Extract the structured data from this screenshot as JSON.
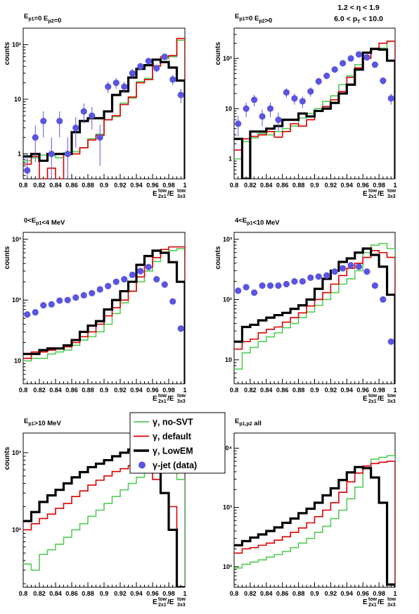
{
  "header": {
    "eta_cut": "1.2 < η < 1.9",
    "pt_cut": "6.0 < p_T < 10.0"
  },
  "legend": {
    "entries": [
      {
        "key": "nosvt",
        "label": "γ, no-SVT",
        "color": "#55cc55",
        "style": "line"
      },
      {
        "key": "def",
        "label": "γ, default",
        "color": "#dd0000",
        "style": "line"
      },
      {
        "key": "lowem",
        "label": "γ, LowEM",
        "color": "#000000",
        "style": "thick-line"
      },
      {
        "key": "data",
        "label": "γ-jet (data)",
        "color": "#5a55e0",
        "style": "marker"
      }
    ]
  },
  "chart_data": [
    {
      "type": "histogram",
      "title": "E_p1=0 E_p2=0",
      "ylabel": "counts",
      "xlabel": "E_2x1^tow/E_3x3^tow",
      "log_y": true,
      "xlim": [
        0.8,
        1.0
      ],
      "ylim": [
        0.35,
        200
      ],
      "x_ticks": [
        "0.8",
        "0.82",
        "0.84",
        "0.86",
        "0.88",
        "0.9",
        "0.92",
        "0.94",
        "0.96",
        "0.98",
        "1"
      ],
      "y_ticks": [
        {
          "value": 1,
          "label": "1"
        },
        {
          "value": 10,
          "label": "10"
        },
        {
          "value": 100,
          "label": "10²"
        }
      ],
      "bin_edges": [
        0.8,
        0.81,
        0.82,
        0.83,
        0.84,
        0.85,
        0.86,
        0.87,
        0.88,
        0.89,
        0.9,
        0.91,
        0.92,
        0.93,
        0.94,
        0.95,
        0.96,
        0.97,
        0.98,
        0.99,
        1.0
      ],
      "series": [
        {
          "key": "nosvt",
          "values": [
            0.75,
            0.85,
            0.95,
            0.95,
            0.85,
            1.05,
            1.1,
            1.3,
            1.9,
            2.3,
            4.2,
            4.8,
            8.5,
            10.5,
            21,
            24,
            40,
            55,
            60,
            120
          ]
        },
        {
          "key": "def",
          "values": [
            0.65,
            0.9,
            0.35,
            0.55,
            0.35,
            1.0,
            1.0,
            1.3,
            1.8,
            2.2,
            4.2,
            5,
            8,
            11,
            20,
            23,
            41,
            60,
            63,
            130
          ]
        },
        {
          "key": "lowem",
          "values": [
            0.9,
            1.0,
            0.75,
            1.0,
            1.0,
            1.0,
            2.5,
            4.0,
            4.5,
            4.5,
            6.0,
            12,
            14,
            25,
            36,
            42,
            53,
            48,
            38,
            22
          ]
        }
      ],
      "points": {
        "key": "data",
        "x": [
          0.805,
          0.815,
          0.825,
          0.835,
          0.845,
          0.855,
          0.865,
          0.875,
          0.885,
          0.895,
          0.905,
          0.915,
          0.925,
          0.935,
          0.945,
          0.955,
          0.965,
          0.975,
          0.985,
          0.995
        ],
        "y": [
          0.5,
          2.0,
          4.0,
          1.0,
          4.0,
          1.0,
          3.0,
          6.0,
          5.0,
          2.0,
          17,
          20,
          17,
          30,
          40,
          50,
          37,
          60,
          23,
          12
        ],
        "err": [
          0.4,
          1.3,
          2.0,
          1.0,
          2.0,
          1.0,
          1.7,
          2.4,
          2.2,
          1.4,
          4,
          4.5,
          4,
          5.5,
          6.3,
          7,
          6,
          7.7,
          4.8,
          3.5
        ]
      }
    },
    {
      "type": "histogram",
      "title": "E_p1=0 E_p2>0",
      "ylabel": "counts",
      "xlabel": "E_2x1^tow/E_3x3^tow",
      "log_y": true,
      "xlim": [
        0.8,
        1.0
      ],
      "ylim": [
        0.4,
        400
      ],
      "x_ticks": [
        "0.8",
        "0.82",
        "0.84",
        "0.86",
        "0.88",
        "0.9",
        "0.92",
        "0.94",
        "0.96",
        "0.98",
        "1"
      ],
      "y_ticks": [
        {
          "value": 1,
          "label": "1"
        },
        {
          "value": 10,
          "label": "10"
        },
        {
          "value": 100,
          "label": "10²"
        }
      ],
      "bin_edges": [
        0.8,
        0.81,
        0.82,
        0.83,
        0.84,
        0.85,
        0.86,
        0.87,
        0.88,
        0.89,
        0.9,
        0.91,
        0.92,
        0.93,
        0.94,
        0.95,
        0.96,
        0.97,
        0.98,
        0.99,
        1.0
      ],
      "series": [
        {
          "key": "nosvt",
          "values": [
            1.0,
            2.2,
            2.6,
            3.2,
            3.0,
            3.5,
            4.0,
            4.5,
            6.5,
            8.0,
            10,
            14,
            18,
            30,
            45,
            75,
            110,
            150,
            160,
            220
          ]
        },
        {
          "key": "def",
          "values": [
            1.5,
            2.5,
            2.8,
            3.0,
            3.5,
            2.7,
            3.5,
            5.0,
            4.5,
            6.0,
            9,
            11,
            15,
            22,
            42,
            65,
            100,
            150,
            200,
            220
          ]
        },
        {
          "key": "lowem",
          "values": [
            2.5,
            0.4,
            3.5,
            3.5,
            4.0,
            4.5,
            6.0,
            6.0,
            8.0,
            7.0,
            9,
            10,
            13,
            20,
            30,
            60,
            130,
            155,
            150,
            90
          ]
        }
      ],
      "points": {
        "key": "data",
        "x": [
          0.805,
          0.815,
          0.825,
          0.835,
          0.845,
          0.855,
          0.865,
          0.875,
          0.885,
          0.895,
          0.905,
          0.915,
          0.925,
          0.935,
          0.945,
          0.955,
          0.965,
          0.975,
          0.985,
          0.995
        ],
        "y": [
          5.0,
          10,
          15,
          7,
          10,
          6,
          21,
          16,
          14,
          22,
          35,
          45,
          60,
          80,
          100,
          120,
          105,
          75,
          36,
          16
        ],
        "err": [
          2.2,
          3.2,
          3.9,
          2.6,
          3.2,
          2.4,
          4.6,
          4,
          3.7,
          4.7,
          5.9,
          6.7,
          7.7,
          9,
          10,
          11,
          10,
          8.7,
          6,
          4
        ]
      }
    },
    {
      "type": "histogram",
      "title": "0<E_p1<4 MeV",
      "ylabel": "counts",
      "xlabel": "E_2x1^tow/E_3x3^tow",
      "log_y": true,
      "xlim": [
        0.8,
        1.0
      ],
      "ylim": [
        4.2,
        1300
      ],
      "x_ticks": [
        "0.8",
        "0.82",
        "0.84",
        "0.86",
        "0.88",
        "0.9",
        "0.92",
        "0.94",
        "0.96",
        "0.98",
        "1"
      ],
      "y_ticks": [
        {
          "value": 10,
          "label": "10"
        },
        {
          "value": 100,
          "label": "10²"
        },
        {
          "value": 1000,
          "label": "10³"
        }
      ],
      "bin_edges": [
        0.8,
        0.81,
        0.82,
        0.83,
        0.84,
        0.85,
        0.86,
        0.87,
        0.88,
        0.89,
        0.9,
        0.91,
        0.92,
        0.93,
        0.94,
        0.95,
        0.96,
        0.97,
        0.98,
        0.99,
        1.0
      ],
      "series": [
        {
          "key": "nosvt",
          "values": [
            10,
            11,
            11,
            13,
            14,
            15,
            18,
            22,
            25,
            30,
            40,
            60,
            90,
            140,
            200,
            300,
            430,
            600,
            650,
            700
          ]
        },
        {
          "key": "def",
          "values": [
            11,
            14,
            14,
            15,
            16,
            17,
            20,
            25,
            30,
            40,
            55,
            75,
            100,
            140,
            240,
            350,
            500,
            680,
            750,
            750
          ]
        },
        {
          "key": "lowem",
          "values": [
            13,
            13,
            15,
            16,
            16,
            18,
            22,
            30,
            38,
            45,
            70,
            100,
            140,
            200,
            380,
            530,
            650,
            600,
            420,
            200
          ]
        }
      ],
      "points": {
        "key": "data",
        "x": [
          0.805,
          0.815,
          0.825,
          0.835,
          0.845,
          0.855,
          0.865,
          0.875,
          0.885,
          0.895,
          0.905,
          0.915,
          0.925,
          0.935,
          0.945,
          0.955,
          0.965,
          0.975,
          0.985,
          0.995
        ],
        "y": [
          58,
          63,
          82,
          85,
          98,
          100,
          110,
          120,
          130,
          150,
          170,
          200,
          220,
          260,
          300,
          350,
          220,
          180,
          95,
          34
        ],
        "err": [
          0,
          0,
          0,
          0,
          0,
          0,
          0,
          0,
          0,
          0,
          0,
          0,
          0,
          0,
          0,
          0,
          0,
          0,
          0,
          0
        ]
      }
    },
    {
      "type": "histogram",
      "title": "4<E_p1<10 MeV",
      "ylabel": "counts",
      "xlabel": "E_2x1^tow/E_3x3^tow",
      "log_y": true,
      "xlim": [
        0.8,
        1.0
      ],
      "ylim": [
        4.0,
        1300
      ],
      "x_ticks": [
        "0.8",
        "0.82",
        "0.84",
        "0.86",
        "0.88",
        "0.9",
        "0.92",
        "0.94",
        "0.96",
        "0.98",
        "1"
      ],
      "y_ticks": [
        {
          "value": 10,
          "label": "10"
        },
        {
          "value": 100,
          "label": "10²"
        },
        {
          "value": 1000,
          "label": "10³"
        }
      ],
      "bin_edges": [
        0.8,
        0.81,
        0.82,
        0.83,
        0.84,
        0.85,
        0.86,
        0.87,
        0.88,
        0.89,
        0.9,
        0.91,
        0.92,
        0.93,
        0.94,
        0.95,
        0.96,
        0.97,
        0.98,
        0.99,
        1.0
      ],
      "series": [
        {
          "key": "nosvt",
          "values": [
            7,
            13,
            16,
            20,
            24,
            28,
            34,
            40,
            50,
            62,
            80,
            100,
            130,
            180,
            220,
            300,
            600,
            800,
            850,
            700
          ]
        },
        {
          "key": "def",
          "values": [
            15,
            20,
            22,
            28,
            32,
            35,
            42,
            50,
            60,
            78,
            100,
            130,
            180,
            250,
            330,
            400,
            500,
            650,
            600,
            500
          ]
        },
        {
          "key": "lowem",
          "values": [
            20,
            35,
            38,
            45,
            50,
            55,
            60,
            70,
            80,
            100,
            150,
            220,
            300,
            420,
            480,
            600,
            700,
            550,
            350,
            120
          ]
        }
      ],
      "points": {
        "key": "data",
        "x": [
          0.805,
          0.815,
          0.825,
          0.835,
          0.845,
          0.855,
          0.865,
          0.875,
          0.885,
          0.895,
          0.905,
          0.915,
          0.925,
          0.935,
          0.945,
          0.955,
          0.965,
          0.975,
          0.985,
          0.995
        ],
        "y": [
          140,
          160,
          130,
          170,
          170,
          170,
          180,
          200,
          200,
          230,
          240,
          250,
          290,
          330,
          370,
          350,
          290,
          170,
          100,
          20
        ],
        "err": [
          0,
          0,
          0,
          0,
          0,
          0,
          0,
          0,
          0,
          0,
          0,
          0,
          0,
          0,
          0,
          0,
          0,
          0,
          0,
          0
        ]
      }
    },
    {
      "type": "histogram",
      "title": "E_p1>10 MeV",
      "ylabel": "counts",
      "xlabel": "E_2x1^tow/E_3x3^tow",
      "log_y": true,
      "xlim": [
        0.8,
        1.0
      ],
      "ylim": [
        18,
        1800
      ],
      "x_ticks": [
        "0.8",
        "0.82",
        "0.84",
        "0.86",
        "0.88",
        "0.9",
        "0.92",
        "0.94",
        "0.96",
        "0.98",
        "1"
      ],
      "y_ticks": [
        {
          "value": 100,
          "label": "10²"
        },
        {
          "value": 1000,
          "label": "10³"
        }
      ],
      "bin_edges": [
        0.8,
        0.81,
        0.82,
        0.83,
        0.84,
        0.85,
        0.86,
        0.87,
        0.88,
        0.89,
        0.9,
        0.91,
        0.92,
        0.93,
        0.94,
        0.95,
        0.96,
        0.97,
        0.98,
        0.99,
        1.0
      ],
      "series": [
        {
          "key": "nosvt",
          "values": [
            36,
            30,
            48,
            55,
            65,
            80,
            100,
            120,
            150,
            180,
            220,
            270,
            330,
            400,
            480,
            550,
            650,
            700,
            600,
            450
          ]
        },
        {
          "key": "def",
          "values": [
            100,
            120,
            140,
            160,
            190,
            220,
            270,
            320,
            380,
            440,
            500,
            570,
            620,
            680,
            700,
            600,
            450,
            300,
            200,
            18
          ]
        },
        {
          "key": "lowem",
          "values": [
            130,
            170,
            230,
            280,
            330,
            400,
            480,
            560,
            650,
            720,
            800,
            900,
            1000,
            1100,
            1050,
            950,
            700,
            300,
            100,
            18
          ]
        }
      ]
    },
    {
      "type": "histogram",
      "title": "E_p1,p2 all",
      "ylabel": "counts",
      "xlabel": "E_2x1^tow/E_3x3^tow",
      "log_y": true,
      "xlim": [
        0.8,
        1.0
      ],
      "ylim": [
        45,
        18000
      ],
      "x_ticks": [
        "0.8",
        "0.82",
        "0.84",
        "0.86",
        "0.88",
        "0.9",
        "0.92",
        "0.94",
        "0.96",
        "0.98",
        "1"
      ],
      "y_ticks": [
        {
          "value": 100,
          "label": "10²"
        },
        {
          "value": 1000,
          "label": "10³"
        },
        {
          "value": 10000,
          "label": "10⁴"
        }
      ],
      "bin_edges": [
        0.8,
        0.81,
        0.82,
        0.83,
        0.84,
        0.85,
        0.86,
        0.87,
        0.88,
        0.89,
        0.9,
        0.91,
        0.92,
        0.93,
        0.94,
        0.95,
        0.96,
        0.97,
        0.98,
        0.99,
        1.0
      ],
      "series": [
        {
          "key": "nosvt",
          "values": [
            95,
            110,
            120,
            130,
            145,
            160,
            180,
            210,
            250,
            300,
            380,
            480,
            650,
            900,
            1400,
            2200,
            4500,
            6500,
            7000,
            7500
          ]
        },
        {
          "key": "def",
          "values": [
            170,
            200,
            210,
            230,
            250,
            280,
            320,
            380,
            450,
            550,
            700,
            900,
            1200,
            1800,
            2700,
            3800,
            5000,
            5500,
            5800,
            6000
          ]
        },
        {
          "key": "lowem",
          "values": [
            230,
            270,
            310,
            350,
            400,
            460,
            550,
            650,
            800,
            950,
            1200,
            1600,
            2100,
            2900,
            3900,
            4800,
            4600,
            3200,
            1200,
            50
          ]
        }
      ]
    }
  ]
}
